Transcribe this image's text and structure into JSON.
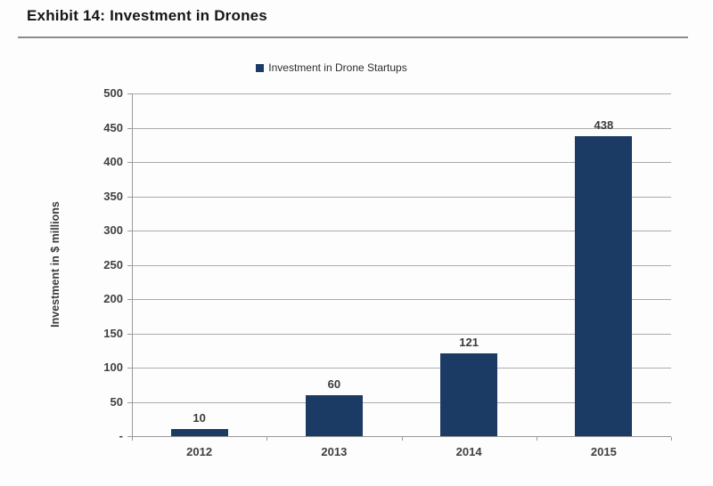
{
  "chart_data": {
    "type": "bar",
    "title": "Exhibit 14: Investment in Drones",
    "legend": [
      "Investment in Drone Startups"
    ],
    "legend_position": "top",
    "categories": [
      "2012",
      "2013",
      "2014",
      "2015"
    ],
    "values": [
      10,
      60,
      121,
      438
    ],
    "data_labels": [
      "10",
      "60",
      "121",
      "438"
    ],
    "xlabel": "",
    "ylabel": "Investment in $ millions",
    "ylim": [
      0,
      500
    ],
    "ytick_step": 50,
    "ytick_labels": [
      "-",
      "50",
      "100",
      "150",
      "200",
      "250",
      "300",
      "350",
      "400",
      "450",
      "500"
    ],
    "grid": true,
    "colors": {
      "bar": "#1b3a64",
      "gridline": "#ababab",
      "axis": "#9a9a9a",
      "tick_text": "#404040",
      "title_text": "#161616",
      "divider": "#8c8c8c",
      "background": "#fdfdfd"
    }
  }
}
